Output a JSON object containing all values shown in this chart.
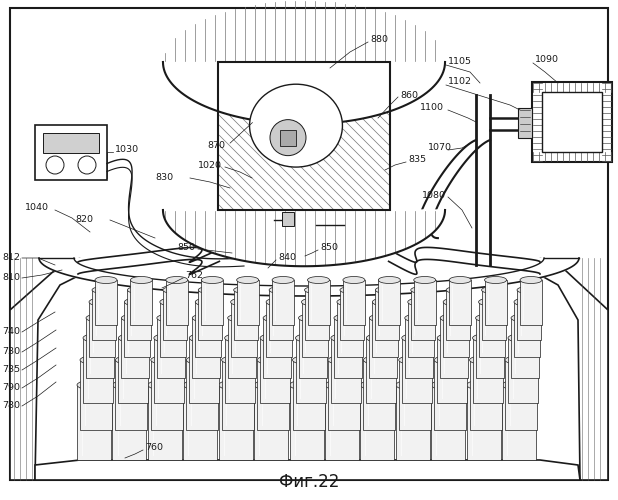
{
  "title": "Фиг.22",
  "title_fontsize": 12,
  "bg": "#ffffff",
  "lc": "#1a1a1a",
  "hc": "#555555",
  "fig_w": 6.18,
  "fig_h": 5.0,
  "dpi": 100
}
